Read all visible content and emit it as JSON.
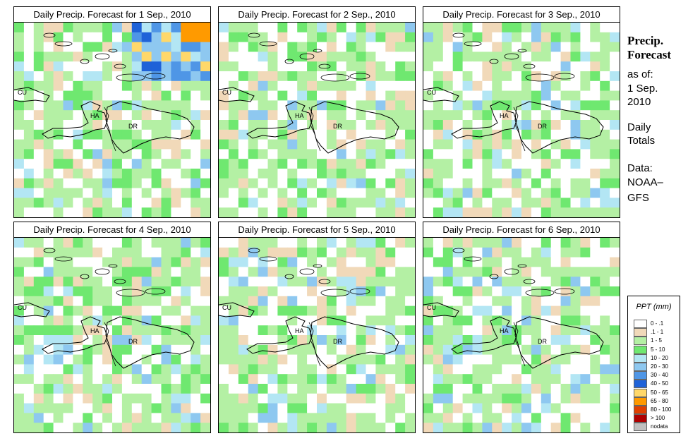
{
  "panels": [
    {
      "title": "Daily Precip. Forecast for  1 Sep., 2010",
      "seed": 11,
      "heavy": true
    },
    {
      "title": "Daily Precip. Forecast for  2 Sep., 2010",
      "seed": 23,
      "heavy": false
    },
    {
      "title": "Daily Precip. Forecast for  3 Sep., 2010",
      "seed": 37,
      "heavy": false
    },
    {
      "title": "Daily Precip. Forecast for  4 Sep., 2010",
      "seed": 41,
      "heavy": false
    },
    {
      "title": "Daily Precip. Forecast for  5 Sep., 2010",
      "seed": 53,
      "heavy": false
    },
    {
      "title": "Daily Precip. Forecast for  6 Sep., 2010",
      "seed": 67,
      "heavy": false
    }
  ],
  "map_labels": {
    "cuba": "CU",
    "haiti": "HA",
    "dominican_republic": "DR"
  },
  "side": {
    "title_line1": "Precip.",
    "title_line2": "Forecast",
    "as_of": "as of:",
    "date": "1 Sep.",
    "year": "2010",
    "daily": "Daily",
    "totals": "Totals",
    "data_label": "Data:",
    "source1": "NOAA–",
    "source2": "GFS"
  },
  "legend": {
    "title": "PPT (mm)",
    "items": [
      {
        "label": "0 - .1",
        "color": "#ffffff"
      },
      {
        "label": ".1 - 1",
        "color": "#f1d9b9"
      },
      {
        "label": "1 - 5",
        "color": "#b4f0a4"
      },
      {
        "label": "5 - 10",
        "color": "#6fe870"
      },
      {
        "label": "10 - 20",
        "color": "#b3e6f4"
      },
      {
        "label": "20 - 30",
        "color": "#8ec8f0"
      },
      {
        "label": "30 - 40",
        "color": "#4f96e6"
      },
      {
        "label": "40 - 50",
        "color": "#1f62d8"
      },
      {
        "label": "50 - 65",
        "color": "#ffd86a"
      },
      {
        "label": "65 - 80",
        "color": "#ff9a00"
      },
      {
        "label": "80 - 100",
        "color": "#e04000"
      },
      {
        "label": "> 100",
        "color": "#b00000"
      },
      {
        "label": "nodata",
        "color": "#c0c0c0"
      }
    ]
  }
}
